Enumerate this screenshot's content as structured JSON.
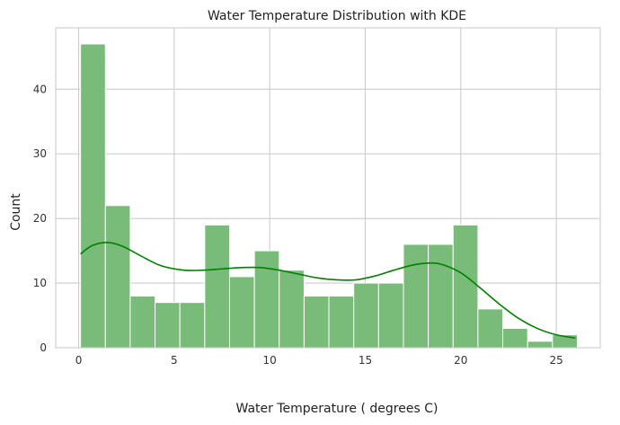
{
  "chart_data": {
    "type": "bar",
    "title": "Water Temperature Distribution with KDE",
    "xlabel": "Water Temperature ( degrees C)",
    "ylabel": "Count",
    "xlim": [
      -1.2,
      27.3
    ],
    "ylim": [
      0,
      49.5
    ],
    "xticks": [
      0,
      5,
      10,
      15,
      20,
      25
    ],
    "yticks": [
      0,
      10,
      20,
      30,
      40
    ],
    "grid": true,
    "bar_color": "#79bb79",
    "kde_color": "#008000",
    "bins": [
      {
        "start": 0.1,
        "end": 1.4,
        "count": 47
      },
      {
        "start": 1.4,
        "end": 2.7,
        "count": 22
      },
      {
        "start": 2.7,
        "end": 4.0,
        "count": 8
      },
      {
        "start": 4.0,
        "end": 5.3,
        "count": 7
      },
      {
        "start": 5.3,
        "end": 6.6,
        "count": 7
      },
      {
        "start": 6.6,
        "end": 7.9,
        "count": 19
      },
      {
        "start": 7.9,
        "end": 9.2,
        "count": 11
      },
      {
        "start": 9.2,
        "end": 10.5,
        "count": 15
      },
      {
        "start": 10.5,
        "end": 11.8,
        "count": 12
      },
      {
        "start": 11.8,
        "end": 13.1,
        "count": 8
      },
      {
        "start": 13.1,
        "end": 14.4,
        "count": 8
      },
      {
        "start": 14.4,
        "end": 15.7,
        "count": 10
      },
      {
        "start": 15.7,
        "end": 17.0,
        "count": 10
      },
      {
        "start": 17.0,
        "end": 18.3,
        "count": 16
      },
      {
        "start": 18.3,
        "end": 19.6,
        "count": 16
      },
      {
        "start": 19.6,
        "end": 20.9,
        "count": 19
      },
      {
        "start": 20.9,
        "end": 22.2,
        "count": 6
      },
      {
        "start": 22.2,
        "end": 23.5,
        "count": 3
      },
      {
        "start": 23.5,
        "end": 24.8,
        "count": 1
      },
      {
        "start": 24.8,
        "end": 26.1,
        "count": 2
      }
    ],
    "kde": {
      "x": [
        0.1,
        0.7,
        1.5,
        2.3,
        3.2,
        4.3,
        5.5,
        6.5,
        7.5,
        8.5,
        9.5,
        10.5,
        11.5,
        12.5,
        13.5,
        14.5,
        15.5,
        16.5,
        17.5,
        18.3,
        19.0,
        20.0,
        21.0,
        22.0,
        23.0,
        24.0,
        25.0,
        26.0
      ],
      "y": [
        14.5,
        15.8,
        16.3,
        15.7,
        14.3,
        12.7,
        12.0,
        12.0,
        12.2,
        12.4,
        12.4,
        12.0,
        11.4,
        10.8,
        10.5,
        10.5,
        11.1,
        12.0,
        12.8,
        13.1,
        12.9,
        11.6,
        9.3,
        6.8,
        4.6,
        3.0,
        2.0,
        1.5
      ]
    }
  }
}
